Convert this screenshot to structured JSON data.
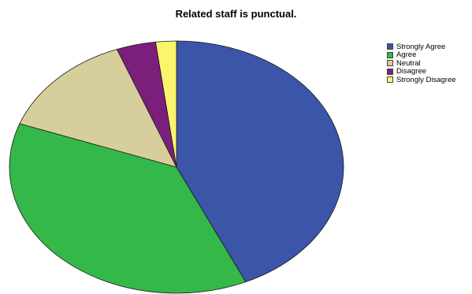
{
  "chart_data": {
    "type": "pie",
    "title": "Related staff is punctual.",
    "categories": [
      "Strongly Agree",
      "Agree",
      "Neutral",
      "Disagree",
      "Strongly Disagree"
    ],
    "values": [
      43.2,
      37.4,
      13.6,
      3.8,
      2.0
    ],
    "unit": "%",
    "colors": [
      "#3b55a8",
      "#34b84a",
      "#d6cf9b",
      "#7b1f7a",
      "#fbf56e"
    ],
    "start_angle_deg": 0,
    "direction": "clockwise",
    "legend_position": "top-right",
    "data_labels": false
  }
}
